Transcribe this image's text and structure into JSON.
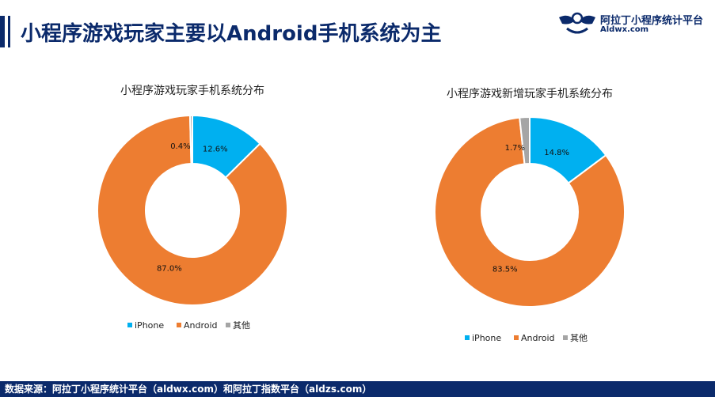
{
  "header": {
    "title": "小程序游戏玩家主要以Android手机系统为主",
    "brand_name": "阿拉丁小程序统计平台",
    "brand_url": "Aldwx.com"
  },
  "footer": {
    "source": "数据来源：阿拉丁小程序统计平台（aldwx.com）和阿拉丁指数平台（aldzs.com）"
  },
  "colors": {
    "iphone": "#00b0f0",
    "android": "#ed7d31",
    "other": "#a5a5a5",
    "navy": "#0b2a6b"
  },
  "chart_data": [
    {
      "type": "pie",
      "title": "小程序游戏玩家手机系统分布",
      "legend_position": "bottom",
      "categories": [
        "iPhone",
        "Android",
        "其他"
      ],
      "values": [
        12.6,
        87.0,
        0.4
      ],
      "labels": [
        "12.6%",
        "87.0%",
        "0.4%"
      ]
    },
    {
      "type": "pie",
      "title": "小程序游戏新增玩家手机系统分布",
      "legend_position": "bottom",
      "categories": [
        "iPhone",
        "Android",
        "其他"
      ],
      "values": [
        14.8,
        83.5,
        1.7
      ],
      "labels": [
        "14.8%",
        "83.5%",
        "1.7%"
      ]
    }
  ]
}
